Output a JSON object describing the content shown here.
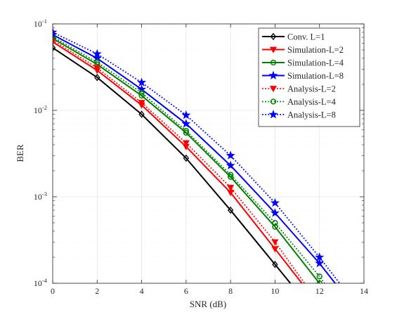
{
  "chart_data": {
    "type": "line",
    "xlabel": "SNR (dB)",
    "ylabel": "BER",
    "xlim": [
      0,
      14
    ],
    "ylim": [
      0.0001,
      0.1
    ],
    "yscale": "log",
    "x_ticks": [
      "0",
      "2",
      "4",
      "6",
      "8",
      "10",
      "12",
      "14"
    ],
    "y_ticks": [
      {
        "base": "10",
        "exp": "-4"
      },
      {
        "base": "10",
        "exp": "-3"
      },
      {
        "base": "10",
        "exp": "-2"
      },
      {
        "base": "10",
        "exp": "-1"
      }
    ],
    "grid": true,
    "legend_position": "top-right",
    "series": [
      {
        "name": "Conv. L=1",
        "color": "#000000",
        "line": "solid",
        "marker": "diamond",
        "x": [
          0,
          2,
          4,
          6,
          8,
          10,
          11
        ],
        "values": [
          0.053,
          0.024,
          0.009,
          0.0028,
          0.0007,
          0.000165,
          8e-05
        ]
      },
      {
        "name": "Simulation-L=2",
        "color": "#ff0000",
        "line": "solid",
        "marker": "triangle-down",
        "x": [
          0,
          2,
          4,
          6,
          8,
          10,
          11.5
        ],
        "values": [
          0.062,
          0.029,
          0.0115,
          0.0038,
          0.00112,
          0.00025,
          8e-05
        ]
      },
      {
        "name": "Simulation-L=4",
        "color": "#008000",
        "line": "solid",
        "marker": "circle",
        "x": [
          0,
          2,
          4,
          6,
          8,
          10,
          12,
          12.3
        ],
        "values": [
          0.068,
          0.034,
          0.0148,
          0.0055,
          0.0017,
          0.00045,
          0.0001,
          8e-05
        ]
      },
      {
        "name": "Simulation-L=8",
        "color": "#0000ff",
        "line": "solid",
        "marker": "star",
        "x": [
          0,
          2,
          4,
          6,
          8,
          10,
          12,
          13
        ],
        "values": [
          0.075,
          0.04,
          0.0175,
          0.007,
          0.0023,
          0.00065,
          0.00017,
          8e-05
        ]
      },
      {
        "name": "Analysis-L=2",
        "color": "#ff0000",
        "line": "dotted",
        "marker": "triangle-down",
        "x": [
          0,
          2,
          4,
          6,
          8,
          10,
          11.6
        ],
        "values": [
          0.065,
          0.031,
          0.0123,
          0.0042,
          0.00128,
          0.0003,
          8e-05
        ]
      },
      {
        "name": "Analysis-L=4",
        "color": "#008000",
        "line": "dotted",
        "marker": "circle",
        "x": [
          0,
          2,
          4,
          6,
          8,
          10,
          12,
          12.5
        ],
        "values": [
          0.071,
          0.036,
          0.016,
          0.0058,
          0.0018,
          0.0005,
          0.00012,
          8e-05
        ]
      },
      {
        "name": "Analysis-L=8",
        "color": "#0000ff",
        "line": "dotted",
        "marker": "star",
        "x": [
          0,
          2,
          4,
          6,
          8,
          10,
          12,
          13.2
        ],
        "values": [
          0.08,
          0.045,
          0.021,
          0.0088,
          0.003,
          0.00085,
          0.0002,
          8e-05
        ]
      }
    ]
  }
}
